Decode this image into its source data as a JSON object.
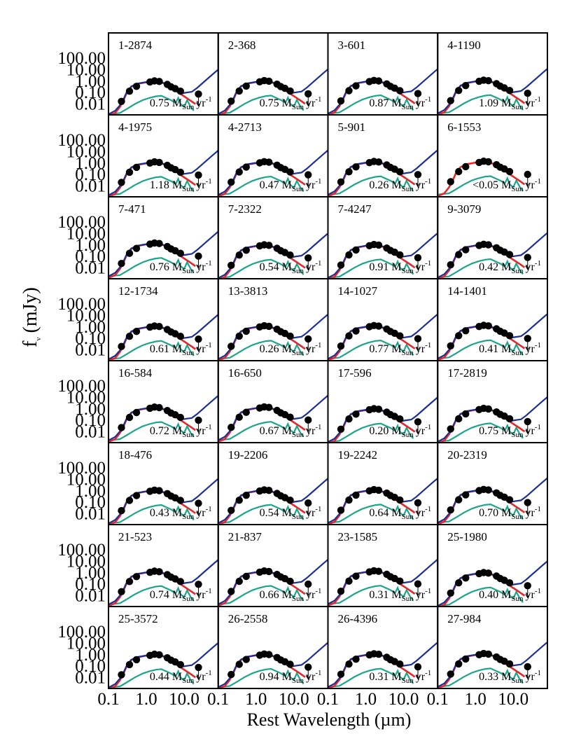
{
  "chart_data": {
    "type": "line",
    "layout": "grid 8 rows x 4 columns of small panels",
    "ylabel": "f",
    "ylabel_subscript": "ν",
    "ylabel_unit": "(mJy)",
    "xlabel": "Rest Wavelength (µm)",
    "x_scale": "log",
    "y_scale": "log",
    "xlim": [
      0.1,
      80
    ],
    "ylim": [
      0.006,
      180
    ],
    "x_ticks": [
      "0.1",
      "1.0",
      "10.0"
    ],
    "y_ticks": [
      "100.00",
      "10.00",
      "1.00",
      "0.10",
      "0.01"
    ],
    "sfr_unit": {
      "m": "M",
      "sub": "Sun",
      "yr": "yr",
      "sup": "-1"
    },
    "series": [
      {
        "color": "#1d2f95"
      },
      {
        "color": "#e8262b"
      },
      {
        "color": "#1ca58a"
      },
      {
        "color": "#000000"
      }
    ],
    "panels": [
      {
        "id": "1-2874",
        "sfr": "0.75"
      },
      {
        "id": "2-368",
        "sfr": "0.75"
      },
      {
        "id": "3-601",
        "sfr": "0.87"
      },
      {
        "id": "4-1190",
        "sfr": "1.09"
      },
      {
        "id": "4-1975",
        "sfr": "1.18"
      },
      {
        "id": "4-2713",
        "sfr": "0.47"
      },
      {
        "id": "5-901",
        "sfr": "0.26"
      },
      {
        "id": "6-1553",
        "sfr": "<0.05",
        "no_ir_model": true
      },
      {
        "id": "7-471",
        "sfr": "0.76"
      },
      {
        "id": "7-2322",
        "sfr": "0.54"
      },
      {
        "id": "7-4247",
        "sfr": "0.91"
      },
      {
        "id": "9-3079",
        "sfr": "0.42"
      },
      {
        "id": "12-1734",
        "sfr": "0.61"
      },
      {
        "id": "13-3813",
        "sfr": "0.26"
      },
      {
        "id": "14-1027",
        "sfr": "0.77"
      },
      {
        "id": "14-1401",
        "sfr": "0.41"
      },
      {
        "id": "16-584",
        "sfr": "0.72"
      },
      {
        "id": "16-650",
        "sfr": "0.67"
      },
      {
        "id": "17-596",
        "sfr": "0.20"
      },
      {
        "id": "17-2819",
        "sfr": "0.75"
      },
      {
        "id": "18-476",
        "sfr": "0.43"
      },
      {
        "id": "19-2206",
        "sfr": "0.54"
      },
      {
        "id": "19-2242",
        "sfr": "0.64"
      },
      {
        "id": "20-2319",
        "sfr": "0.70"
      },
      {
        "id": "21-523",
        "sfr": "0.74"
      },
      {
        "id": "21-837",
        "sfr": "0.66"
      },
      {
        "id": "23-1585",
        "sfr": "0.31"
      },
      {
        "id": "25-1980",
        "sfr": "0.40"
      },
      {
        "id": "25-3572",
        "sfr": "0.44"
      },
      {
        "id": "26-2558",
        "sfr": "0.94"
      },
      {
        "id": "26-4396",
        "sfr": "0.31"
      },
      {
        "id": "27-984",
        "sfr": "0.33"
      }
    ],
    "representative_sed": {
      "blue_total": [
        [
          0.1,
          0.008
        ],
        [
          0.15,
          0.015
        ],
        [
          0.2,
          0.04
        ],
        [
          0.25,
          0.12
        ],
        [
          0.3,
          0.4
        ],
        [
          0.4,
          1.2
        ],
        [
          0.6,
          2.0
        ],
        [
          1.0,
          2.6
        ],
        [
          1.6,
          3.2
        ],
        [
          2.2,
          3.0
        ],
        [
          3.5,
          1.8
        ],
        [
          5,
          0.9
        ],
        [
          7,
          0.45
        ],
        [
          9,
          0.35
        ],
        [
          12,
          0.4
        ],
        [
          16,
          0.45
        ],
        [
          22,
          0.9
        ],
        [
          35,
          3
        ],
        [
          60,
          12
        ],
        [
          80,
          25
        ]
      ],
      "red_stellar": [
        [
          0.1,
          0.006
        ],
        [
          0.15,
          0.01
        ],
        [
          0.2,
          0.03
        ],
        [
          0.25,
          0.1
        ],
        [
          0.3,
          0.35
        ],
        [
          0.4,
          1.1
        ],
        [
          0.6,
          1.9
        ],
        [
          1.0,
          2.5
        ],
        [
          1.6,
          3.1
        ],
        [
          2.2,
          2.9
        ],
        [
          3.5,
          1.6
        ],
        [
          5,
          0.8
        ],
        [
          7,
          0.4
        ],
        [
          10,
          0.2
        ],
        [
          15,
          0.09
        ],
        [
          20,
          0.05
        ]
      ],
      "green_component": [
        [
          0.1,
          0.008
        ],
        [
          0.2,
          0.01
        ],
        [
          0.3,
          0.02
        ],
        [
          0.5,
          0.05
        ],
        [
          0.8,
          0.1
        ],
        [
          1.2,
          0.15
        ],
        [
          1.8,
          0.2
        ],
        [
          2.5,
          0.22
        ],
        [
          3.5,
          0.14
        ],
        [
          4.5,
          0.1
        ],
        [
          6,
          0.06
        ],
        [
          7,
          0.15
        ],
        [
          8,
          0.05
        ],
        [
          10,
          0.03
        ],
        [
          12,
          0.1
        ],
        [
          15,
          0.03
        ],
        [
          18,
          0.015
        ]
      ],
      "points": [
        [
          0.22,
          0.08
        ],
        [
          0.36,
          0.5
        ],
        [
          0.55,
          1.2
        ],
        [
          1.25,
          2.6
        ],
        [
          1.65,
          3.2
        ],
        [
          2.2,
          2.9
        ],
        [
          3.6,
          1.7
        ],
        [
          4.5,
          1.1
        ],
        [
          5.8,
          0.8
        ],
        [
          8.0,
          0.5
        ],
        [
          24,
          0.3
        ]
      ]
    }
  }
}
